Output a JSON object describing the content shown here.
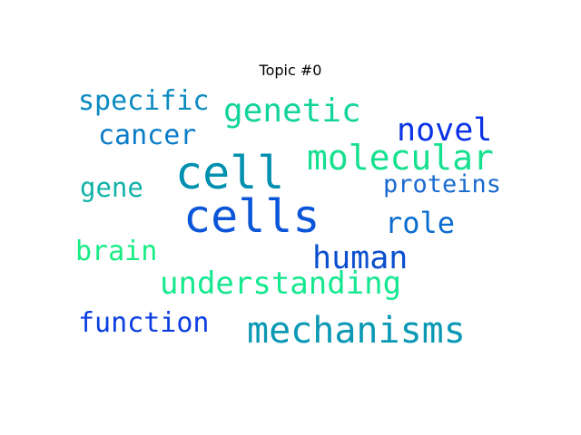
{
  "chart_data": {
    "type": "wordcloud",
    "title": "Topic #0",
    "words": [
      {
        "text": "cell",
        "color": "#0090b0"
      },
      {
        "text": "cells",
        "color": "#0a55d8"
      },
      {
        "text": "mechanisms",
        "color": "#0a98b4"
      },
      {
        "text": "molecular",
        "color": "#14e08e"
      },
      {
        "text": "genetic",
        "color": "#12d49a"
      },
      {
        "text": "novel",
        "color": "#0a32e6"
      },
      {
        "text": "human",
        "color": "#0b4fcf"
      },
      {
        "text": "understanding",
        "color": "#16e890"
      },
      {
        "text": "specific",
        "color": "#0a8ac0"
      },
      {
        "text": "cancer",
        "color": "#0a7cc8"
      },
      {
        "text": "role",
        "color": "#0a6cd0"
      },
      {
        "text": "function",
        "color": "#0a3ee0"
      },
      {
        "text": "proteins",
        "color": "#1a6ad0"
      },
      {
        "text": "gene",
        "color": "#10b2a8"
      },
      {
        "text": "brain",
        "color": "#18ec84"
      }
    ]
  }
}
